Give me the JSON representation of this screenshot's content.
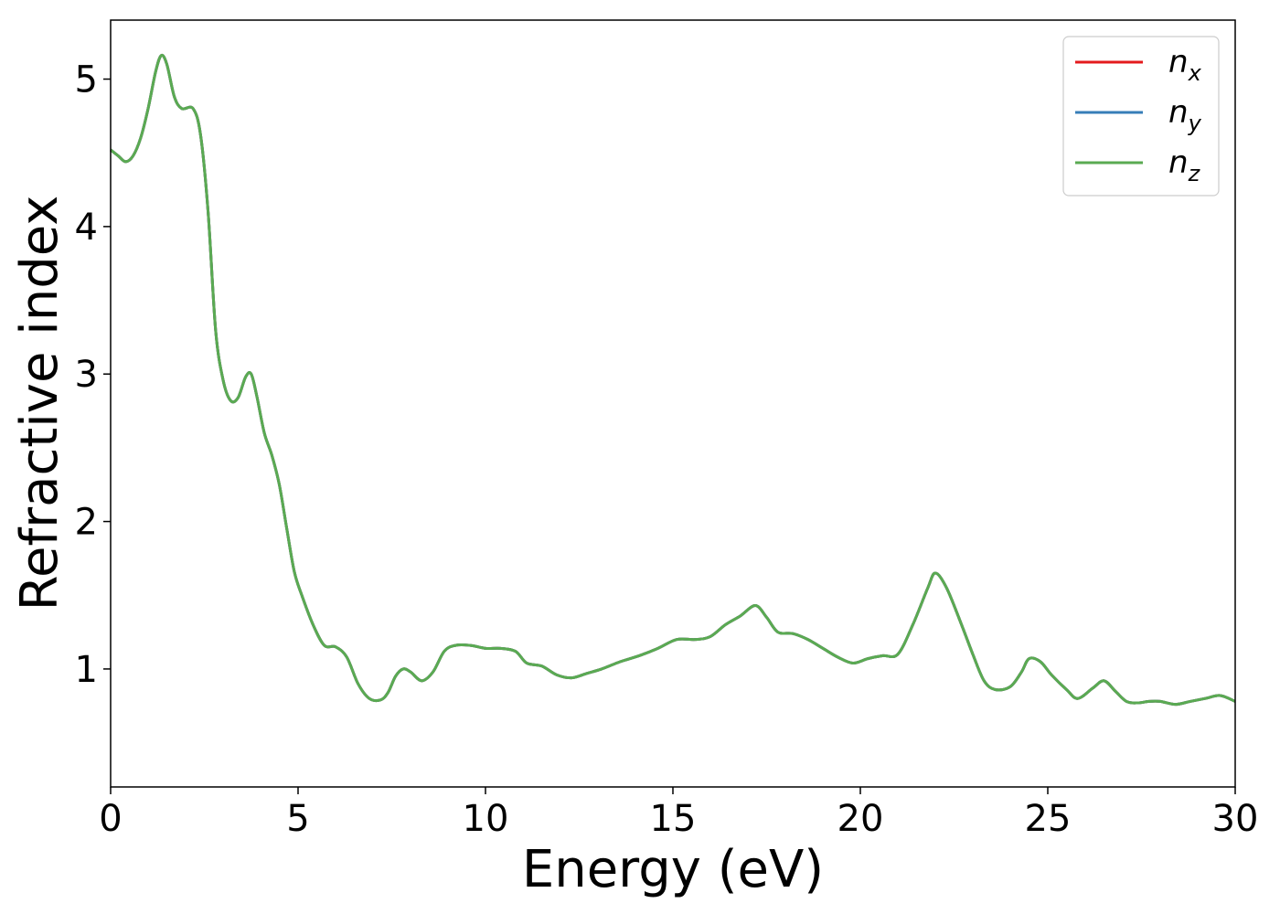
{
  "chart_data": {
    "type": "line",
    "xlabel": "Energy (eV)",
    "ylabel": "Refractive index",
    "xlim": [
      0,
      30
    ],
    "ylim": [
      0.2,
      5.4
    ],
    "xticks": [
      0,
      5,
      10,
      15,
      20,
      25,
      30
    ],
    "xtick_labels": [
      "0",
      "5",
      "10",
      "15",
      "20",
      "25",
      "30"
    ],
    "yticks": [
      1,
      2,
      3,
      4,
      5
    ],
    "ytick_labels": [
      "1",
      "2",
      "3",
      "4",
      "5"
    ],
    "grid": false,
    "legend_position": "top-right",
    "x": [
      0,
      0.2,
      0.4,
      0.6,
      0.8,
      1.0,
      1.2,
      1.35,
      1.5,
      1.7,
      1.9,
      2.2,
      2.4,
      2.6,
      2.8,
      3.0,
      3.2,
      3.4,
      3.6,
      3.75,
      3.9,
      4.1,
      4.3,
      4.5,
      4.7,
      4.9,
      5.1,
      5.4,
      5.7,
      6.0,
      6.3,
      6.6,
      6.9,
      7.2,
      7.4,
      7.6,
      7.8,
      8.0,
      8.3,
      8.6,
      8.9,
      9.2,
      9.6,
      10.0,
      10.4,
      10.8,
      11.1,
      11.5,
      11.9,
      12.3,
      12.7,
      13.1,
      13.6,
      14.1,
      14.6,
      15.1,
      15.6,
      16.0,
      16.4,
      16.8,
      17.2,
      17.5,
      17.8,
      18.2,
      18.6,
      19.0,
      19.4,
      19.8,
      20.2,
      20.6,
      21.0,
      21.4,
      21.8,
      22.0,
      22.3,
      22.7,
      23.0,
      23.3,
      23.6,
      24.0,
      24.3,
      24.5,
      24.8,
      25.1,
      25.5,
      25.8,
      26.2,
      26.5,
      26.8,
      27.1,
      27.4,
      27.7,
      28.0,
      28.4,
      28.8,
      29.2,
      29.6,
      30.0
    ],
    "series": [
      {
        "name": "n_x",
        "label_main": "n",
        "label_sub": "x",
        "color": "#e41a1c",
        "y": [
          4.52,
          4.48,
          4.44,
          4.48,
          4.6,
          4.8,
          5.05,
          5.16,
          5.1,
          4.88,
          4.8,
          4.8,
          4.62,
          4.1,
          3.3,
          2.96,
          2.82,
          2.84,
          2.98,
          3.0,
          2.85,
          2.6,
          2.45,
          2.25,
          1.95,
          1.66,
          1.5,
          1.3,
          1.16,
          1.15,
          1.08,
          0.9,
          0.8,
          0.79,
          0.84,
          0.95,
          1.0,
          0.98,
          0.92,
          0.98,
          1.12,
          1.16,
          1.16,
          1.14,
          1.14,
          1.12,
          1.04,
          1.02,
          0.96,
          0.94,
          0.97,
          1.0,
          1.05,
          1.09,
          1.14,
          1.2,
          1.2,
          1.22,
          1.3,
          1.36,
          1.43,
          1.35,
          1.25,
          1.24,
          1.2,
          1.14,
          1.08,
          1.04,
          1.07,
          1.09,
          1.1,
          1.3,
          1.55,
          1.65,
          1.55,
          1.3,
          1.1,
          0.92,
          0.86,
          0.88,
          0.98,
          1.07,
          1.05,
          0.96,
          0.86,
          0.8,
          0.87,
          0.92,
          0.85,
          0.78,
          0.77,
          0.78,
          0.78,
          0.76,
          0.78,
          0.8,
          0.82,
          0.78
        ]
      },
      {
        "name": "n_y",
        "label_main": "n",
        "label_sub": "y",
        "color": "#377eb8",
        "y": [
          4.52,
          4.48,
          4.44,
          4.48,
          4.6,
          4.8,
          5.05,
          5.16,
          5.1,
          4.88,
          4.8,
          4.8,
          4.62,
          4.1,
          3.3,
          2.96,
          2.82,
          2.84,
          2.98,
          3.0,
          2.85,
          2.6,
          2.45,
          2.25,
          1.95,
          1.66,
          1.5,
          1.3,
          1.16,
          1.15,
          1.08,
          0.9,
          0.8,
          0.79,
          0.84,
          0.95,
          1.0,
          0.98,
          0.92,
          0.98,
          1.12,
          1.16,
          1.16,
          1.14,
          1.14,
          1.12,
          1.04,
          1.02,
          0.96,
          0.94,
          0.97,
          1.0,
          1.05,
          1.09,
          1.14,
          1.2,
          1.2,
          1.22,
          1.3,
          1.36,
          1.43,
          1.35,
          1.25,
          1.24,
          1.2,
          1.14,
          1.08,
          1.04,
          1.07,
          1.09,
          1.1,
          1.3,
          1.55,
          1.65,
          1.55,
          1.3,
          1.1,
          0.92,
          0.86,
          0.88,
          0.98,
          1.07,
          1.05,
          0.96,
          0.86,
          0.8,
          0.87,
          0.92,
          0.85,
          0.78,
          0.77,
          0.78,
          0.78,
          0.76,
          0.78,
          0.8,
          0.82,
          0.78
        ]
      },
      {
        "name": "n_z",
        "label_main": "n",
        "label_sub": "z",
        "color": "#5aaa52",
        "y": [
          4.52,
          4.48,
          4.44,
          4.48,
          4.6,
          4.8,
          5.05,
          5.16,
          5.1,
          4.88,
          4.8,
          4.8,
          4.62,
          4.1,
          3.3,
          2.96,
          2.82,
          2.84,
          2.98,
          3.0,
          2.85,
          2.6,
          2.45,
          2.25,
          1.95,
          1.66,
          1.5,
          1.3,
          1.16,
          1.15,
          1.08,
          0.9,
          0.8,
          0.79,
          0.84,
          0.95,
          1.0,
          0.98,
          0.92,
          0.98,
          1.12,
          1.16,
          1.16,
          1.14,
          1.14,
          1.12,
          1.04,
          1.02,
          0.96,
          0.94,
          0.97,
          1.0,
          1.05,
          1.09,
          1.14,
          1.2,
          1.2,
          1.22,
          1.3,
          1.36,
          1.43,
          1.35,
          1.25,
          1.24,
          1.2,
          1.14,
          1.08,
          1.04,
          1.07,
          1.09,
          1.1,
          1.3,
          1.55,
          1.65,
          1.55,
          1.3,
          1.1,
          0.92,
          0.86,
          0.88,
          0.98,
          1.07,
          1.05,
          0.96,
          0.86,
          0.8,
          0.87,
          0.92,
          0.85,
          0.78,
          0.77,
          0.78,
          0.78,
          0.76,
          0.78,
          0.8,
          0.82,
          0.78
        ]
      }
    ]
  }
}
